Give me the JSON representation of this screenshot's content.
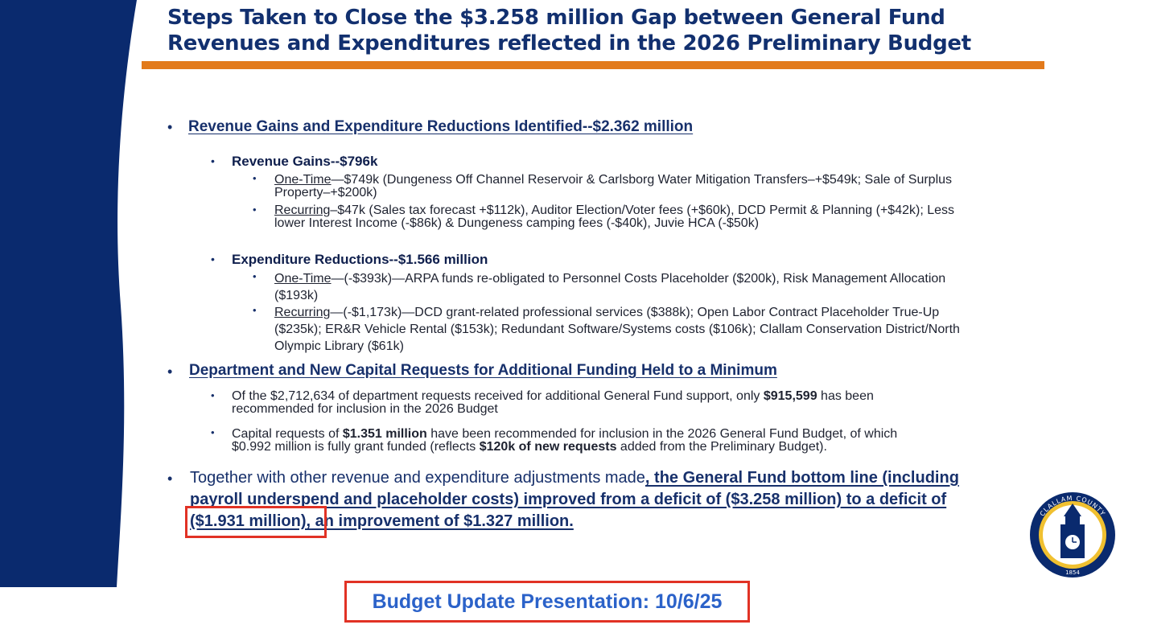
{
  "title": {
    "line1": "Steps Taken to Close the $3.258 million Gap between General Fund",
    "line2": "Revenues and Expenditures reflected in the 2026 Preliminary Budget"
  },
  "section1": {
    "heading": "Revenue Gains and Expenditure Reductions Identified--$2.362 million",
    "revenue_gains": {
      "heading": "Revenue Gains--$796k",
      "one_time_label": "One-Time",
      "one_time_line1": "—$749k (Dungeness Off Channel Reservoir & Carlsborg Water Mitigation Transfers–+$549k; Sale of Surplus",
      "one_time_line2": "Property–+$200k)",
      "recurring_label": "Recurring",
      "recurring_line1": "–$47k (Sales tax forecast +$112k), Auditor Election/Voter fees (+$60k), DCD Permit & Planning (+$42k); Less",
      "recurring_line2": "lower Interest Income (-$86k) & Dungeness camping fees (-$40k), Juvie HCA (-$50k)"
    },
    "expenditure_reductions": {
      "heading": "Expenditure Reductions--$1.566 million",
      "one_time_label": "One-Time",
      "one_time_line1": "—(-$393k)—ARPA funds re-obligated to Personnel Costs Placeholder ($200k), Risk Management Allocation",
      "one_time_line2": "($193k)",
      "recurring_label": "Recurring",
      "recurring_line1": "—(-$1,173k)—DCD grant-related professional services ($388k); Open Labor Contract Placeholder True-Up",
      "recurring_line2": "($235k); ER&R Vehicle Rental ($153k); Redundant Software/Systems costs ($106k); Clallam Conservation District/North",
      "recurring_line3": "Olympic Library ($61k)"
    }
  },
  "section2": {
    "heading": "Department and New Capital Requests for Additional Funding Held to a Minimum",
    "item1_pre": "Of the $2,712,634 of department requests received for additional General Fund support, only ",
    "item1_bold": "$915,599",
    "item1_post": " has been",
    "item1_line2": "recommended for inclusion in the 2026 Budget",
    "item2_pre": "Capital requests of ",
    "item2_bold": "$1.351 million",
    "item2_post": " have been recommended for inclusion in the 2026 General Fund Budget, of which",
    "item2_line2_pre": "$0.992 million is fully grant funded (reflects ",
    "item2_line2_bold": "$120k of new requests",
    "item2_line2_post": " added from the Preliminary Budget)."
  },
  "section3": {
    "line1_plain": "Together with other revenue and expenditure adjustments made",
    "line1_bold": ", the General Fund bottom line (including",
    "line2": "payroll underspend and placeholder costs) improved from a deficit of ($3.258 million) to a deficit of",
    "line3_highlight": "($1.931 million),",
    "line3_rest": " an improvement of $1.327 million."
  },
  "footer": {
    "text": "Budget Update Presentation: 10/6/25"
  },
  "seal": {
    "top_text": "CLALLAM COUNTY",
    "bottom_text": "1854"
  },
  "colors": {
    "navy": "#0a2a6e",
    "orange": "#e27a1b",
    "red_box": "#e13225",
    "footer_blue": "#2b62c9"
  }
}
